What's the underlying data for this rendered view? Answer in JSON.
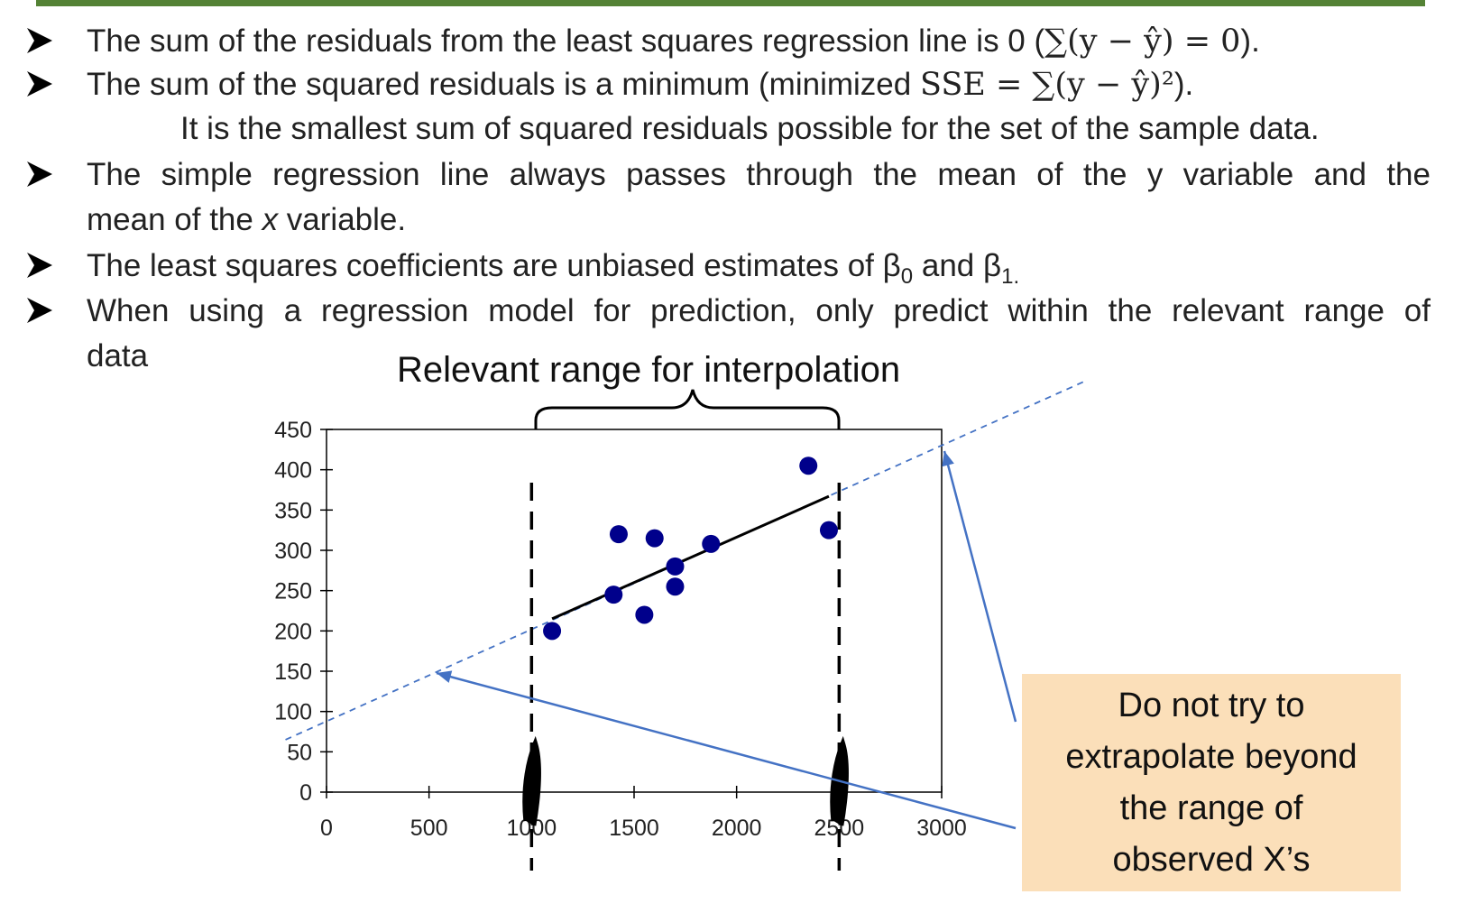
{
  "bullets": {
    "b1": {
      "text": "The sum of the residuals from the least squares regression line is 0 (",
      "formula": "∑(y − ŷ) = 0",
      "close": ")."
    },
    "b2": {
      "text": "The sum of the squared residuals is a minimum (minimized ",
      "formula": "SSE = ∑(y − ŷ)²",
      "close": ").",
      "continuation": "It is the smallest sum of squared residuals possible for the set of the sample data."
    },
    "b3": {
      "line1": "The simple regression line always passes through the mean of the y variable and the",
      "line2_start": "mean of the ",
      "line2_italic": "x",
      "line2_end": " variable."
    },
    "b4": {
      "text": "The least squares coefficients are unbiased estimates of β",
      "sub0": "0",
      "mid": " and β",
      "sub1": "1."
    },
    "b5": {
      "line1": "When using a regression model for prediction, only predict within the relevant range of",
      "line2": "data"
    }
  },
  "chart_title": "Relevant range for interpolation",
  "callout": {
    "line1": "Do not try to",
    "line2": "extrapolate beyond",
    "line3": "the range of",
    "line4": "observed X’s"
  },
  "colors": {
    "top_bar": "#548235",
    "points": "#00008b",
    "annotation_blue": "#4472c4",
    "callout_bg": "#fbdfb9"
  },
  "chart_data": {
    "type": "scatter",
    "x_ticks": [
      "0",
      "500",
      "1000",
      "1500",
      "2000",
      "2500",
      "3000"
    ],
    "y_ticks": [
      "0",
      "50",
      "100",
      "150",
      "200",
      "250",
      "300",
      "350",
      "400",
      "450"
    ],
    "xlim": [
      0,
      3000
    ],
    "ylim": [
      0,
      450
    ],
    "points": [
      {
        "x": 1100,
        "y": 200
      },
      {
        "x": 1400,
        "y": 245
      },
      {
        "x": 1425,
        "y": 320
      },
      {
        "x": 1550,
        "y": 220
      },
      {
        "x": 1600,
        "y": 315
      },
      {
        "x": 1700,
        "y": 280
      },
      {
        "x": 1700,
        "y": 255
      },
      {
        "x": 1875,
        "y": 308
      },
      {
        "x": 2350,
        "y": 405
      },
      {
        "x": 2450,
        "y": 325
      }
    ],
    "fit_line": {
      "x0": 1100,
      "y0": 215,
      "x1": 2450,
      "y1": 367
    },
    "extrapolation_line": {
      "x0": -200,
      "y0": 65,
      "x1": 3700,
      "y1": 510
    },
    "range_markers_x": [
      1000,
      2500
    ],
    "grid": false
  }
}
